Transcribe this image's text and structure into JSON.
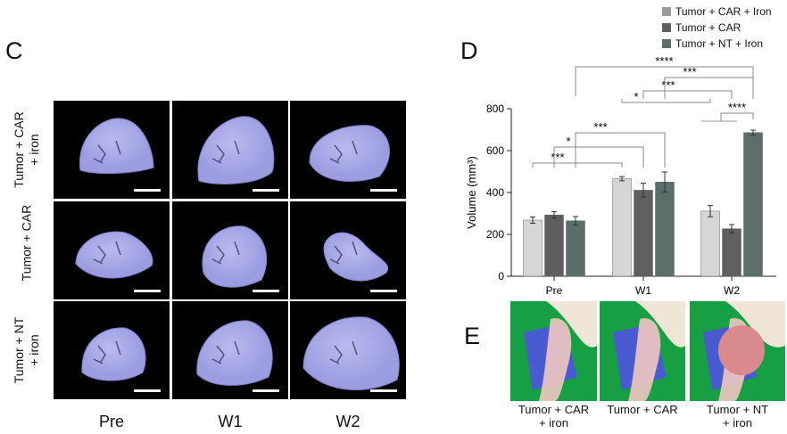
{
  "panel_c": {
    "letter": "C",
    "rows": [
      "Tumor + CAR\n+ iron",
      "Tumor + CAR",
      "Tumor + NT\n+ iron"
    ],
    "columns": [
      "Pre",
      "W1",
      "W2"
    ],
    "image_color": "#9c9de0"
  },
  "panel_d": {
    "letter": "D"
  },
  "panel_e": {
    "letter": "E",
    "captions": [
      "Tumor + CAR\n+ iron",
      "Tumor + CAR",
      "Tumor + NT\n+ iron"
    ]
  },
  "chart_data": {
    "type": "bar",
    "categories": [
      "Pre",
      "W1",
      "W2"
    ],
    "ylabel": "Volume (mm³)",
    "ylim": [
      0,
      800
    ],
    "yticks": [
      0,
      200,
      400,
      600,
      800
    ],
    "legend_position": "top-right",
    "series": [
      {
        "name": "Tumor + CAR + Iron",
        "color": "#d6d6d6",
        "legend_color": "#9a9a9a",
        "values": [
          268,
          466,
          311
        ],
        "errors": [
          15,
          10,
          27
        ]
      },
      {
        "name": "Tumor + CAR",
        "color": "#5f5f5f",
        "legend_color": "#5f5f5f",
        "values": [
          293,
          411,
          227
        ],
        "errors": [
          15,
          33,
          20
        ]
      },
      {
        "name": "Tumor + NT + Iron",
        "color": "#5b6e6a",
        "legend_color": "#5b6e6a",
        "values": [
          265,
          450,
          686
        ],
        "errors": [
          20,
          48,
          12
        ]
      }
    ],
    "significance": [
      {
        "from": [
          0,
          0
        ],
        "to": [
          1,
          0
        ],
        "label": "***"
      },
      {
        "from": [
          0,
          1
        ],
        "to": [
          1,
          1
        ],
        "label": "*"
      },
      {
        "from": [
          0,
          2
        ],
        "to": [
          1,
          2
        ],
        "label": "***"
      },
      {
        "from": [
          1,
          0
        ],
        "to": [
          2,
          0
        ],
        "label": "*"
      },
      {
        "from": [
          1,
          1
        ],
        "to": [
          2,
          1
        ],
        "label": "***"
      },
      {
        "from": [
          1,
          2
        ],
        "to": [
          2,
          2
        ],
        "label": "***"
      },
      {
        "from": [
          0,
          2
        ],
        "to": [
          2,
          2
        ],
        "label": "****"
      },
      {
        "from": [
          2,
          0
        ],
        "to": [
          2,
          2
        ],
        "label": "****"
      }
    ]
  }
}
